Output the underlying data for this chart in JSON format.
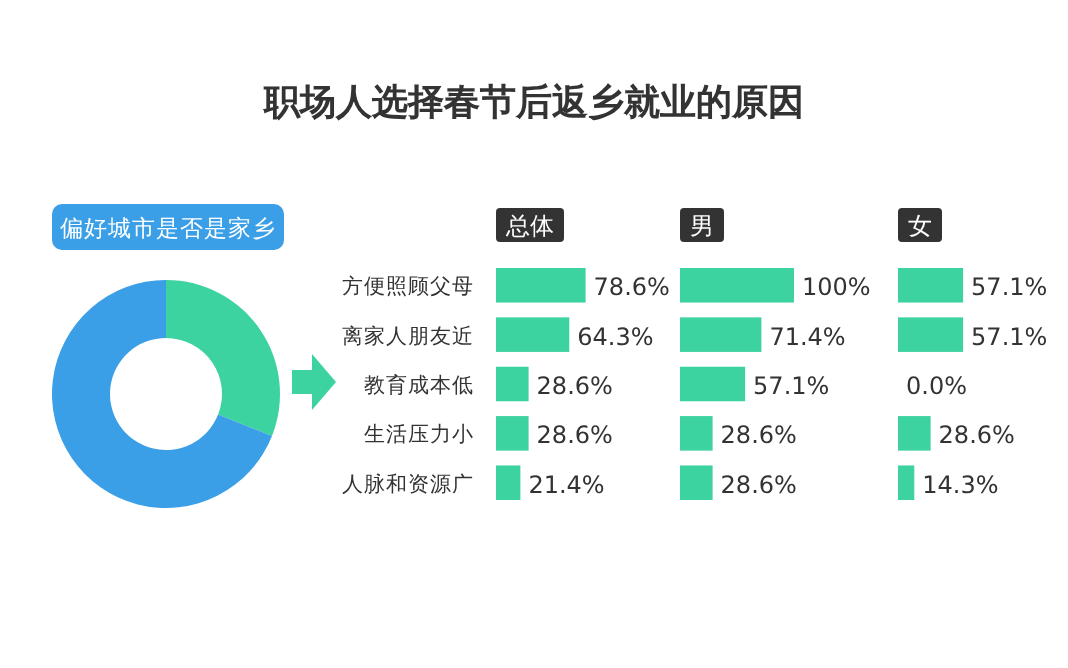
{
  "chart_data": [
    {
      "type": "donut",
      "subtitle": "偏好城市是否是家乡",
      "categories": [
        null,
        null
      ],
      "values": [
        31,
        69
      ],
      "colors": [
        "#3dd3a0",
        "#3a9fe6"
      ]
    },
    {
      "type": "bar",
      "orientation": "horizontal",
      "title": "总体",
      "subtitle": "职场人选择春节后返乡就业的原因",
      "categories": [
        "方便照顾父母",
        "离家人朋友近",
        "教育成本低",
        "生活压力小",
        "人脉和资源广"
      ],
      "values": [
        78.6,
        64.3,
        28.6,
        28.6,
        21.4
      ],
      "value_labels": [
        "78.6%",
        "64.3%",
        "28.6%",
        "28.6%",
        "21.4%"
      ],
      "color": "#3dd3a0",
      "tick_labels": "y"
    },
    {
      "type": "bar",
      "orientation": "horizontal",
      "title": "男",
      "values": [
        100,
        71.4,
        57.1,
        28.6,
        28.6
      ],
      "value_labels": [
        "100%",
        "71.4%",
        "57.1%",
        "28.6%",
        "28.6%"
      ],
      "color": "#3dd3a0",
      "tick_labels": false
    },
    {
      "type": "bar",
      "orientation": "horizontal",
      "title": "女",
      "values": [
        57.1,
        57.1,
        0,
        28.6,
        14.3
      ],
      "value_labels": [
        "57.1%",
        "57.1%",
        "0.0%",
        "28.6%",
        "14.3%"
      ],
      "color": "#3dd3a0",
      "tick_labels": false
    }
  ]
}
